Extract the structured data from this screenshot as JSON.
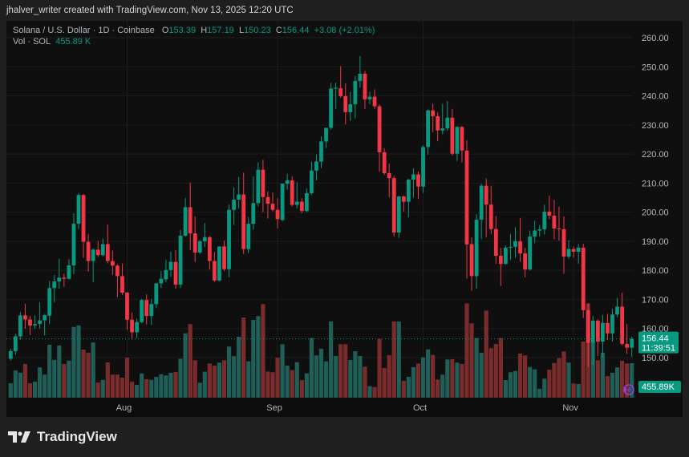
{
  "credit": "jhalver_writer created with TradingView.com, Nov 13, 2025 12:20 UTC",
  "legend": {
    "symbol": "Solana / U.S. Dollar · 1D · Coinbase",
    "o_label": "O",
    "o": "153.39",
    "h_label": "H",
    "h": "157.19",
    "l_label": "L",
    "l": "150.23",
    "c_label": "C",
    "c": "156.44",
    "change": "+3.08 (+2.01%)",
    "vol_label": "Vol · SOL",
    "vol": "455.89 K"
  },
  "logo_text": "TradingView",
  "chart_data": {
    "type": "candlestick",
    "colors": {
      "up": "#089981",
      "down": "#f23645",
      "vol_up": "#1f5f57",
      "vol_down": "#7a2c2c",
      "background": "#0f0f0f"
    },
    "y_axis": {
      "range": [
        140,
        262
      ],
      "ticks": [
        "260.00",
        "250.00",
        "240.00",
        "230.00",
        "220.00",
        "210.00",
        "200.00",
        "190.00",
        "180.00",
        "170.00",
        "160.00",
        "150.00"
      ]
    },
    "x_axis": {
      "ticks": [
        {
          "label": "Aug",
          "date": "2025-08-01"
        },
        {
          "label": "Sep",
          "date": "2025-09-01"
        },
        {
          "label": "Oct",
          "date": "2025-10-01"
        },
        {
          "label": "Nov",
          "date": "2025-11-01"
        }
      ]
    },
    "grid": true,
    "last_price": {
      "price": "156.44",
      "countdown": "11:39:51"
    },
    "last_volume": "455.89K",
    "volume_unit": "K SOL",
    "columns": [
      "date",
      "open",
      "high",
      "low",
      "close",
      "volume"
    ],
    "candles": [
      [
        "2025-07-08",
        149.6,
        153,
        149,
        152.2,
        190
      ],
      [
        "2025-07-09",
        152.2,
        158.2,
        151,
        157.3,
        360
      ],
      [
        "2025-07-10",
        157.3,
        165.6,
        156.2,
        164.5,
        330
      ],
      [
        "2025-07-11",
        164.5,
        168.5,
        159.9,
        163.1,
        445
      ],
      [
        "2025-07-12",
        163.1,
        164.3,
        157.8,
        161,
        190
      ],
      [
        "2025-07-13",
        161,
        164.5,
        160,
        161.5,
        210
      ],
      [
        "2025-07-14",
        161.6,
        169,
        160,
        162.8,
        400
      ],
      [
        "2025-07-15",
        162.8,
        164.8,
        157.6,
        164.6,
        305
      ],
      [
        "2025-07-16",
        164.4,
        176.3,
        161.5,
        173.9,
        700
      ],
      [
        "2025-07-17",
        173.9,
        178.4,
        169,
        176.2,
        500
      ],
      [
        "2025-07-18",
        176.2,
        184,
        173.7,
        177.5,
        690
      ],
      [
        "2025-07-19",
        177.5,
        178.9,
        174.3,
        177.1,
        445
      ],
      [
        "2025-07-20",
        177.1,
        183.8,
        176.9,
        181.7,
        490
      ],
      [
        "2025-07-21",
        181.7,
        199.6,
        178.7,
        196,
        935
      ],
      [
        "2025-07-22",
        196,
        206.5,
        194.2,
        205.9,
        955
      ],
      [
        "2025-07-23",
        205.9,
        206.2,
        184.3,
        189.8,
        635
      ],
      [
        "2025-07-24",
        189.8,
        192.4,
        179.6,
        183.2,
        595
      ],
      [
        "2025-07-25",
        183.2,
        187.5,
        175.9,
        187.1,
        730
      ],
      [
        "2025-07-26",
        187.1,
        190.1,
        184.6,
        185.2,
        200
      ],
      [
        "2025-07-27",
        185.2,
        190.9,
        184.8,
        189,
        235
      ],
      [
        "2025-07-28",
        189,
        195.7,
        182.4,
        183.2,
        465
      ],
      [
        "2025-07-29",
        183.2,
        186.8,
        178.4,
        181.6,
        305
      ],
      [
        "2025-07-30",
        181.6,
        182.1,
        170.8,
        178,
        305
      ],
      [
        "2025-07-31",
        178,
        182.3,
        171.5,
        172.3,
        265
      ],
      [
        "2025-08-01",
        172.3,
        172.6,
        159.6,
        163,
        530
      ],
      [
        "2025-08-02",
        163,
        165.5,
        156.2,
        158.7,
        210
      ],
      [
        "2025-08-03",
        158.7,
        163.4,
        156.7,
        162.2,
        170
      ],
      [
        "2025-08-04",
        162.2,
        170.2,
        161.8,
        169.8,
        320
      ],
      [
        "2025-08-05",
        169.8,
        171.8,
        161.4,
        164.3,
        245
      ],
      [
        "2025-08-06",
        164.3,
        170.2,
        161.2,
        168.4,
        235
      ],
      [
        "2025-08-07",
        168.4,
        175.6,
        167,
        175.5,
        275
      ],
      [
        "2025-08-08",
        175.5,
        179.7,
        173.9,
        177.1,
        310
      ],
      [
        "2025-08-09",
        176.9,
        183.6,
        176,
        180.1,
        293
      ],
      [
        "2025-08-10",
        180.1,
        186.4,
        177.8,
        182.9,
        329
      ],
      [
        "2025-08-11",
        182.9,
        187,
        173.7,
        175.1,
        340
      ],
      [
        "2025-08-12",
        175.1,
        193.9,
        173.9,
        191.9,
        516
      ],
      [
        "2025-08-13",
        191.9,
        204.9,
        191.5,
        201.7,
        851
      ],
      [
        "2025-08-14",
        201.7,
        210.2,
        187,
        192.7,
        972
      ],
      [
        "2025-08-15",
        192.7,
        198.5,
        182.9,
        186.1,
        495
      ],
      [
        "2025-08-16",
        186.1,
        190.5,
        185.6,
        190,
        198
      ],
      [
        "2025-08-17",
        190,
        196.2,
        188,
        191.4,
        343
      ],
      [
        "2025-08-18",
        191.4,
        191.8,
        180.3,
        183.2,
        452
      ],
      [
        "2025-08-19",
        183.2,
        186.3,
        176,
        176.5,
        424
      ],
      [
        "2025-08-20",
        176.5,
        188.2,
        176.2,
        188.2,
        463
      ],
      [
        "2025-08-21",
        188.2,
        190.2,
        179.7,
        180.4,
        495
      ],
      [
        "2025-08-22",
        180.4,
        202.6,
        177.6,
        200.8,
        675
      ],
      [
        "2025-08-23",
        200.8,
        208.6,
        195.6,
        204.3,
        548
      ],
      [
        "2025-08-24",
        204.3,
        212.1,
        201.3,
        206.1,
        806
      ],
      [
        "2025-08-25",
        206.1,
        213.6,
        185.6,
        187.3,
        1060
      ],
      [
        "2025-08-26",
        187.3,
        198.3,
        185.9,
        196,
        480
      ],
      [
        "2025-08-27",
        196,
        212.3,
        193.9,
        203.1,
        1028
      ],
      [
        "2025-08-28",
        203.1,
        217.1,
        202,
        214.6,
        1078
      ],
      [
        "2025-08-29",
        214.6,
        218,
        200,
        205.2,
        1237
      ],
      [
        "2025-08-30",
        205.2,
        207.2,
        197.8,
        202.9,
        346
      ],
      [
        "2025-08-31",
        202.9,
        206.8,
        200.2,
        200.8,
        336
      ],
      [
        "2025-09-01",
        200.8,
        204.8,
        194.4,
        197.6,
        530
      ],
      [
        "2025-09-02",
        197.3,
        209.8,
        196.9,
        209.8,
        707
      ],
      [
        "2025-09-03",
        209.8,
        213.2,
        207.7,
        210.9,
        424
      ],
      [
        "2025-09-04",
        210.9,
        212.3,
        202,
        202.5,
        364
      ],
      [
        "2025-09-05",
        202.5,
        210.3,
        201.3,
        203.6,
        470
      ],
      [
        "2025-09-06",
        203.6,
        204.8,
        199.6,
        200.4,
        233
      ],
      [
        "2025-09-07",
        200.4,
        208.2,
        200,
        206.5,
        322
      ],
      [
        "2025-09-08",
        206.5,
        217.4,
        205.9,
        214.3,
        788
      ],
      [
        "2025-09-09",
        214.3,
        219.8,
        210.9,
        217.4,
        558
      ],
      [
        "2025-09-10",
        217.4,
        226.1,
        215.2,
        224.3,
        647
      ],
      [
        "2025-09-11",
        224.3,
        229,
        222,
        229,
        480
      ],
      [
        "2025-09-12",
        229,
        244.5,
        228.4,
        242.5,
        1007
      ],
      [
        "2025-09-13",
        242.5,
        244.5,
        235.5,
        242.8,
        551
      ],
      [
        "2025-09-14",
        242.6,
        250.2,
        239.4,
        239.9,
        707
      ],
      [
        "2025-09-15",
        239.9,
        244.3,
        230.2,
        234.4,
        707
      ],
      [
        "2025-09-16",
        234.4,
        241.3,
        231.4,
        237.1,
        498
      ],
      [
        "2025-09-17",
        237.1,
        246.8,
        232.3,
        245.1,
        615
      ],
      [
        "2025-09-18",
        245.1,
        253.7,
        242.8,
        247.6,
        551
      ],
      [
        "2025-09-19",
        247.6,
        248.6,
        235.5,
        238.8,
        410
      ],
      [
        "2025-09-20",
        238.8,
        241.5,
        237.1,
        239.7,
        152
      ],
      [
        "2025-09-21",
        239.7,
        242.2,
        235.5,
        236.4,
        141
      ],
      [
        "2025-09-22",
        236.4,
        237.1,
        213.9,
        220.6,
        777
      ],
      [
        "2025-09-23",
        220.6,
        222,
        212.8,
        213.4,
        392
      ],
      [
        "2025-09-24",
        213.4,
        216.7,
        205.1,
        211.7,
        562
      ],
      [
        "2025-09-25",
        211.7,
        212.5,
        191.6,
        193,
        1007
      ],
      [
        "2025-09-26",
        193,
        205.6,
        191.2,
        205.4,
        1007
      ],
      [
        "2025-09-27",
        205.4,
        205.7,
        200.2,
        203.6,
        223
      ],
      [
        "2025-09-28",
        203.6,
        211.4,
        198.3,
        211.2,
        276
      ],
      [
        "2025-09-29",
        211.2,
        215.1,
        204.9,
        213,
        403
      ],
      [
        "2025-09-30",
        213,
        214,
        204.5,
        208.8,
        452
      ],
      [
        "2025-10-01",
        208.8,
        223,
        206.6,
        222.4,
        533
      ],
      [
        "2025-10-02",
        222.4,
        235.3,
        219.8,
        235,
        639
      ],
      [
        "2025-10-03",
        235,
        237.3,
        227.5,
        233,
        565
      ],
      [
        "2025-10-04",
        233,
        234.4,
        224.4,
        228.1,
        240
      ],
      [
        "2025-10-05",
        228.1,
        237.3,
        226.8,
        228.8,
        304
      ],
      [
        "2025-10-06",
        228.8,
        238.2,
        228,
        232.5,
        505
      ],
      [
        "2025-10-07",
        232.5,
        235.5,
        219.5,
        220.1,
        509
      ],
      [
        "2025-10-08",
        220.1,
        229.6,
        217.6,
        229.3,
        463
      ],
      [
        "2025-10-09",
        229.3,
        229.6,
        217.1,
        221.2,
        445
      ],
      [
        "2025-10-10",
        221.2,
        224.7,
        177.2,
        188.9,
        1247
      ],
      [
        "2025-10-11",
        189,
        191.3,
        173,
        178,
        982
      ],
      [
        "2025-10-12",
        178,
        199.3,
        173.7,
        197.4,
        788
      ],
      [
        "2025-10-13",
        197.4,
        209.7,
        190.7,
        209.1,
        594
      ],
      [
        "2025-10-14",
        209.1,
        211.6,
        191.3,
        202.6,
        1152
      ],
      [
        "2025-10-15",
        202.6,
        209.1,
        192.5,
        194.2,
        654
      ],
      [
        "2025-10-16",
        194.2,
        198.7,
        182.2,
        185,
        710
      ],
      [
        "2025-10-17",
        185,
        187.7,
        174.6,
        182.2,
        788
      ],
      [
        "2025-10-18",
        182.2,
        188.6,
        182,
        187.8,
        233
      ],
      [
        "2025-10-19",
        187.8,
        192.5,
        183.6,
        188.1,
        336
      ],
      [
        "2025-10-20",
        188.1,
        194.8,
        184.3,
        190,
        353
      ],
      [
        "2025-10-21",
        190,
        198,
        182.9,
        185.8,
        583
      ],
      [
        "2025-10-22",
        185.8,
        187.7,
        177.6,
        180.3,
        558
      ],
      [
        "2025-10-23",
        180.3,
        193.7,
        180,
        191.6,
        406
      ],
      [
        "2025-10-24",
        191.6,
        197.1,
        189.3,
        193.7,
        374
      ],
      [
        "2025-10-25",
        193.7,
        195.6,
        191.6,
        194.1,
        117
      ],
      [
        "2025-10-26",
        194.1,
        202.6,
        192.3,
        200.2,
        251
      ],
      [
        "2025-10-27",
        200.2,
        205.7,
        197.6,
        198.8,
        371
      ],
      [
        "2025-10-28",
        198.8,
        204.2,
        190.7,
        194.4,
        459
      ],
      [
        "2025-10-29",
        194.4,
        201.9,
        190.2,
        194.1,
        523
      ],
      [
        "2025-10-30",
        194.1,
        198.5,
        178.8,
        184.7,
        611
      ],
      [
        "2025-10-31",
        184.7,
        190.4,
        184,
        187.3,
        463
      ],
      [
        "2025-11-01",
        187.3,
        188.2,
        184.4,
        186.4,
        188
      ],
      [
        "2025-11-02",
        186.4,
        189,
        182.2,
        187.8,
        180
      ],
      [
        "2025-11-03",
        187.8,
        189.1,
        163.6,
        166.3,
        742
      ],
      [
        "2025-11-04",
        166.3,
        168.6,
        146.9,
        155.1,
        1247
      ],
      [
        "2025-11-05",
        155.1,
        164.3,
        147.5,
        162.7,
        735
      ],
      [
        "2025-11-06",
        162.7,
        163.1,
        150.5,
        155.5,
        495
      ],
      [
        "2025-11-07",
        155.5,
        164.7,
        150,
        161.9,
        594
      ],
      [
        "2025-11-08",
        161.9,
        165,
        156,
        158.3,
        286
      ],
      [
        "2025-11-09",
        158.3,
        166.8,
        155.5,
        164.8,
        329
      ],
      [
        "2025-11-10",
        164.8,
        170.5,
        163.8,
        167.5,
        400
      ],
      [
        "2025-11-11",
        167.5,
        172.3,
        154.2,
        154.7,
        488
      ],
      [
        "2025-11-12",
        154.7,
        161.5,
        151.2,
        153.4,
        452
      ],
      [
        "2025-11-13",
        153.39,
        157.19,
        150.23,
        156.44,
        455.89
      ]
    ]
  }
}
